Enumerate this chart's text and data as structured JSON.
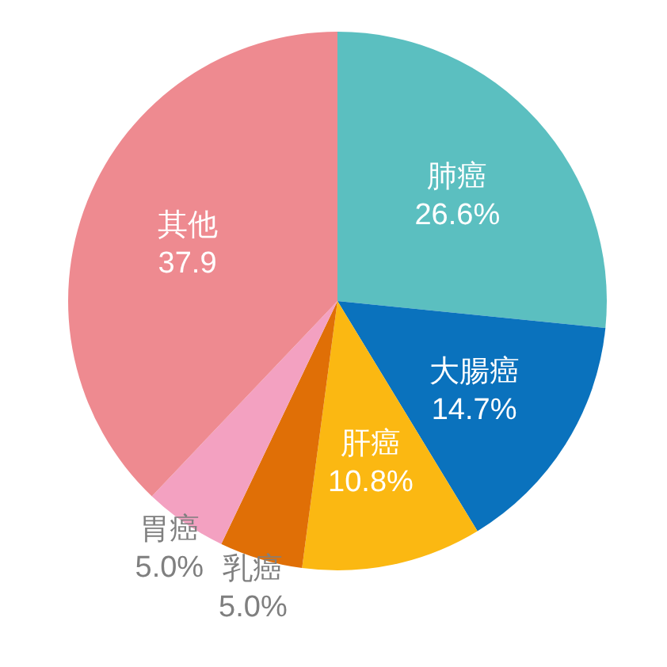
{
  "chart_data": {
    "type": "pie",
    "categories": [
      "肺癌",
      "大腸癌",
      "肝癌",
      "乳癌",
      "胃癌",
      "其他"
    ],
    "values": [
      26.6,
      14.7,
      10.8,
      5.0,
      5.0,
      37.9
    ],
    "value_labels": [
      "26.6%",
      "14.7%",
      "10.8%",
      "5.0%",
      "5.0%",
      "37.9"
    ],
    "colors": [
      "#5bbfc0",
      "#0a72bd",
      "#fbb812",
      "#e06f06",
      "#f3a1c1",
      "#ee8a90"
    ]
  }
}
